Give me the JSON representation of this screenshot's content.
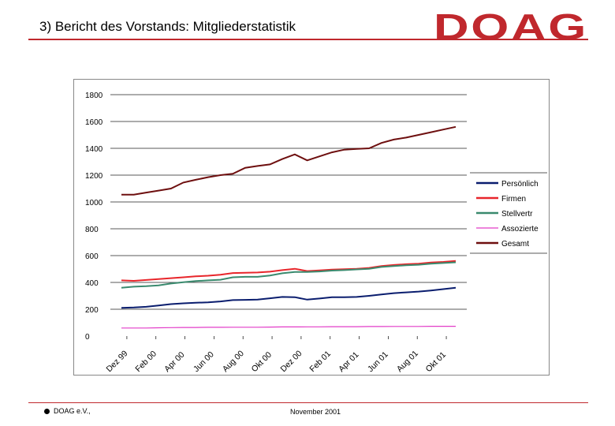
{
  "header": {
    "title": "3) Bericht des Vorstands: Mitgliederstatistik",
    "logo_text": "DOAG",
    "accent_color": "#c0282d"
  },
  "footer": {
    "org": "DOAG e.V.,",
    "date": "November 2001"
  },
  "chart_data": {
    "type": "line",
    "title": "",
    "xlabel": "",
    "ylabel": "",
    "ylim": [
      0,
      1800
    ],
    "yticks": [
      0,
      200,
      400,
      600,
      800,
      1000,
      1200,
      1400,
      1600,
      1800
    ],
    "x_labels": [
      "Dez 99",
      "Feb 00",
      "Apr 00",
      "Jun 00",
      "Aug 00",
      "Okt 00",
      "Dez 00",
      "Feb 01",
      "Apr 01",
      "Jun 01",
      "Aug 01",
      "Okt 01"
    ],
    "grid": "horizontal",
    "legend_position": "right",
    "series": [
      {
        "name": "Persönlich",
        "color": "#0a1d6e",
        "values": [
          210,
          213,
          218,
          228,
          238,
          244,
          248,
          252,
          258,
          268,
          270,
          272,
          282,
          292,
          290,
          272,
          280,
          290,
          290,
          292,
          300,
          310,
          320,
          326,
          332,
          340,
          350,
          360
        ]
      },
      {
        "name": "Firmen",
        "color": "#e8262b",
        "values": [
          415,
          412,
          418,
          425,
          432,
          438,
          445,
          450,
          457,
          470,
          472,
          474,
          480,
          492,
          502,
          485,
          490,
          495,
          498,
          502,
          508,
          522,
          530,
          536,
          540,
          548,
          553,
          560
        ]
      },
      {
        "name": "Stellvertr",
        "color": "#3a8a6e",
        "values": [
          360,
          368,
          372,
          378,
          392,
          402,
          410,
          415,
          420,
          438,
          442,
          442,
          452,
          468,
          478,
          478,
          482,
          488,
          492,
          497,
          502,
          515,
          522,
          528,
          532,
          540,
          545,
          550
        ]
      },
      {
        "name": "Assozierte",
        "color": "#e23cc8",
        "values": [
          60,
          60,
          60,
          62,
          63,
          64,
          64,
          65,
          65,
          66,
          66,
          66,
          67,
          68,
          68,
          69,
          69,
          70,
          70,
          70,
          71,
          71,
          72,
          72,
          72,
          73,
          73,
          73
        ]
      },
      {
        "name": "Gesamt",
        "color": "#6e0f0f",
        "values": [
          1055,
          1055,
          1070,
          1085,
          1100,
          1145,
          1165,
          1185,
          1200,
          1210,
          1255,
          1268,
          1280,
          1320,
          1355,
          1310,
          1340,
          1370,
          1390,
          1395,
          1400,
          1440,
          1465,
          1480,
          1500,
          1520,
          1540,
          1560
        ]
      }
    ]
  }
}
